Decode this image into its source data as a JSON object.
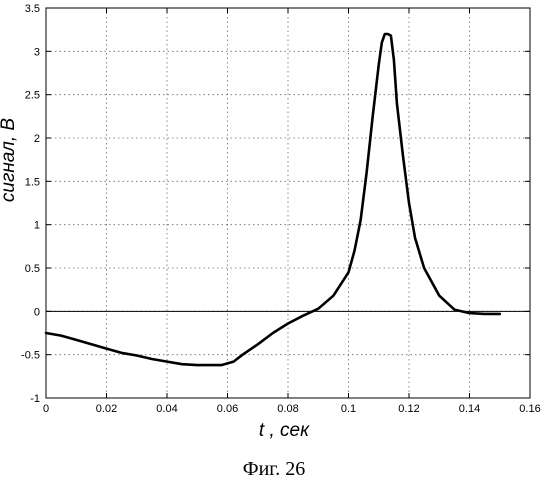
{
  "caption": "Фиг. 26",
  "chart_data": {
    "type": "line",
    "title": "",
    "xlabel": "t , сек",
    "ylabel": "сигнал, В",
    "xlim": [
      0,
      0.16
    ],
    "ylim": [
      -1,
      3.5
    ],
    "xticks": [
      "0",
      "0.02",
      "0.04",
      "0.06",
      "0.08",
      "0.1",
      "0.12",
      "0.14",
      "0.16"
    ],
    "yticks": [
      "-1",
      "-0.5",
      "0",
      "0.5",
      "1",
      "1.5",
      "2",
      "2.5",
      "3",
      "3.5"
    ],
    "xtick_values": [
      0,
      0.02,
      0.04,
      0.06,
      0.08,
      0.1,
      0.12,
      0.14,
      0.16
    ],
    "ytick_values": [
      -1,
      -0.5,
      0,
      0.5,
      1,
      1.5,
      2,
      2.5,
      3,
      3.5
    ],
    "grid": true,
    "reference_line_y": 0,
    "series": [
      {
        "x": [
          0,
          0.005,
          0.01,
          0.015,
          0.02,
          0.025,
          0.03,
          0.035,
          0.04,
          0.045,
          0.05,
          0.055,
          0.058,
          0.062,
          0.065,
          0.07,
          0.075,
          0.08,
          0.085,
          0.09,
          0.095,
          0.1,
          0.102,
          0.104,
          0.106,
          0.108,
          0.11,
          0.111,
          0.112,
          0.113,
          0.114,
          0.115,
          0.116,
          0.118,
          0.12,
          0.122,
          0.125,
          0.13,
          0.135,
          0.14,
          0.145,
          0.15
        ],
        "y": [
          -0.25,
          -0.28,
          -0.33,
          -0.38,
          -0.43,
          -0.48,
          -0.51,
          -0.55,
          -0.58,
          -0.61,
          -0.62,
          -0.62,
          -0.62,
          -0.58,
          -0.5,
          -0.38,
          -0.25,
          -0.14,
          -0.05,
          0.03,
          0.18,
          0.45,
          0.7,
          1.05,
          1.6,
          2.25,
          2.85,
          3.1,
          3.2,
          3.2,
          3.18,
          2.9,
          2.4,
          1.8,
          1.25,
          0.85,
          0.5,
          0.18,
          0.02,
          -0.02,
          -0.03,
          -0.03
        ]
      }
    ]
  }
}
